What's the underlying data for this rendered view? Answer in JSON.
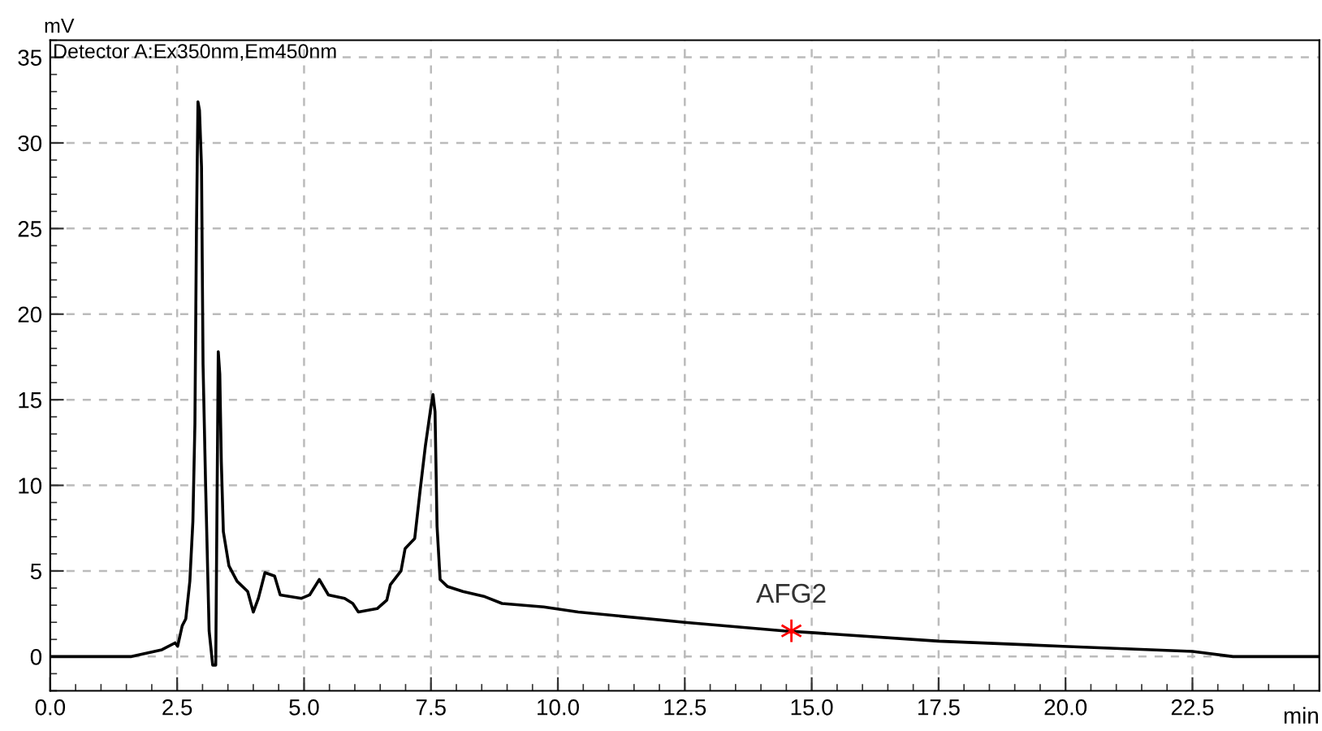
{
  "chart_data": {
    "type": "line",
    "title": "Detector A:Ex350nm,Em450nm",
    "xlabel": "min",
    "ylabel": "mV",
    "series": [
      {
        "color": "#000000",
        "x": [
          0,
          1.6,
          2.2,
          2.46,
          2.51,
          2.6,
          2.67,
          2.75,
          2.81,
          2.85,
          2.88,
          2.91,
          2.94,
          2.98,
          3.01,
          3.06,
          3.13,
          3.2,
          3.26,
          3.28,
          3.31,
          3.34,
          3.37,
          3.41,
          3.52,
          3.68,
          3.89,
          4.0,
          4.1,
          4.23,
          4.42,
          4.53,
          4.95,
          5.11,
          5.3,
          5.48,
          5.8,
          5.96,
          6.07,
          6.44,
          6.63,
          6.7,
          6.91,
          6.99,
          7.18,
          7.29,
          7.39,
          7.5,
          7.54,
          7.58,
          7.62,
          7.68,
          7.82,
          8.13,
          8.56,
          8.9,
          9.72,
          10.4,
          12.5,
          14.45,
          15.0,
          17.5,
          19.95,
          22.5,
          23.3,
          25.0
        ],
        "values": [
          0,
          0,
          0.4,
          0.8,
          0.6,
          1.8,
          2.2,
          4.4,
          7.9,
          13.6,
          24.8,
          32.4,
          31.9,
          28.6,
          17.1,
          10.1,
          1.5,
          -0.5,
          -0.5,
          6.9,
          17.8,
          16.5,
          11.4,
          7.3,
          5.3,
          4.4,
          3.8,
          2.6,
          3.4,
          4.9,
          4.7,
          3.6,
          3.4,
          3.6,
          4.5,
          3.6,
          3.4,
          3.1,
          2.6,
          2.8,
          3.3,
          4.2,
          5.0,
          6.3,
          6.9,
          9.8,
          12.3,
          14.6,
          15.3,
          14.3,
          7.6,
          4.5,
          4.1,
          3.8,
          3.5,
          3.1,
          2.9,
          2.6,
          2.0,
          1.5,
          1.4,
          0.9,
          0.6,
          0.3,
          0.0,
          0.0
        ]
      }
    ],
    "annotations": [
      {
        "text": "AFG2",
        "x": 14.6,
        "y": 1.5
      }
    ],
    "xlim": [
      0,
      25
    ],
    "ylim": [
      -2,
      36
    ],
    "xticks": [
      {
        "value": 0,
        "label": "0.0"
      },
      2.5,
      {
        "value": 5,
        "label": "5.0"
      },
      7.5,
      {
        "value": 10,
        "label": "10.0"
      },
      12.5,
      {
        "value": 15,
        "label": "15.0"
      },
      17.5,
      {
        "value": 20,
        "label": "20.0"
      },
      22.5
    ],
    "yticks": [
      0,
      5,
      10,
      15,
      20,
      25,
      30,
      35
    ],
    "grid": true,
    "legend": false
  }
}
